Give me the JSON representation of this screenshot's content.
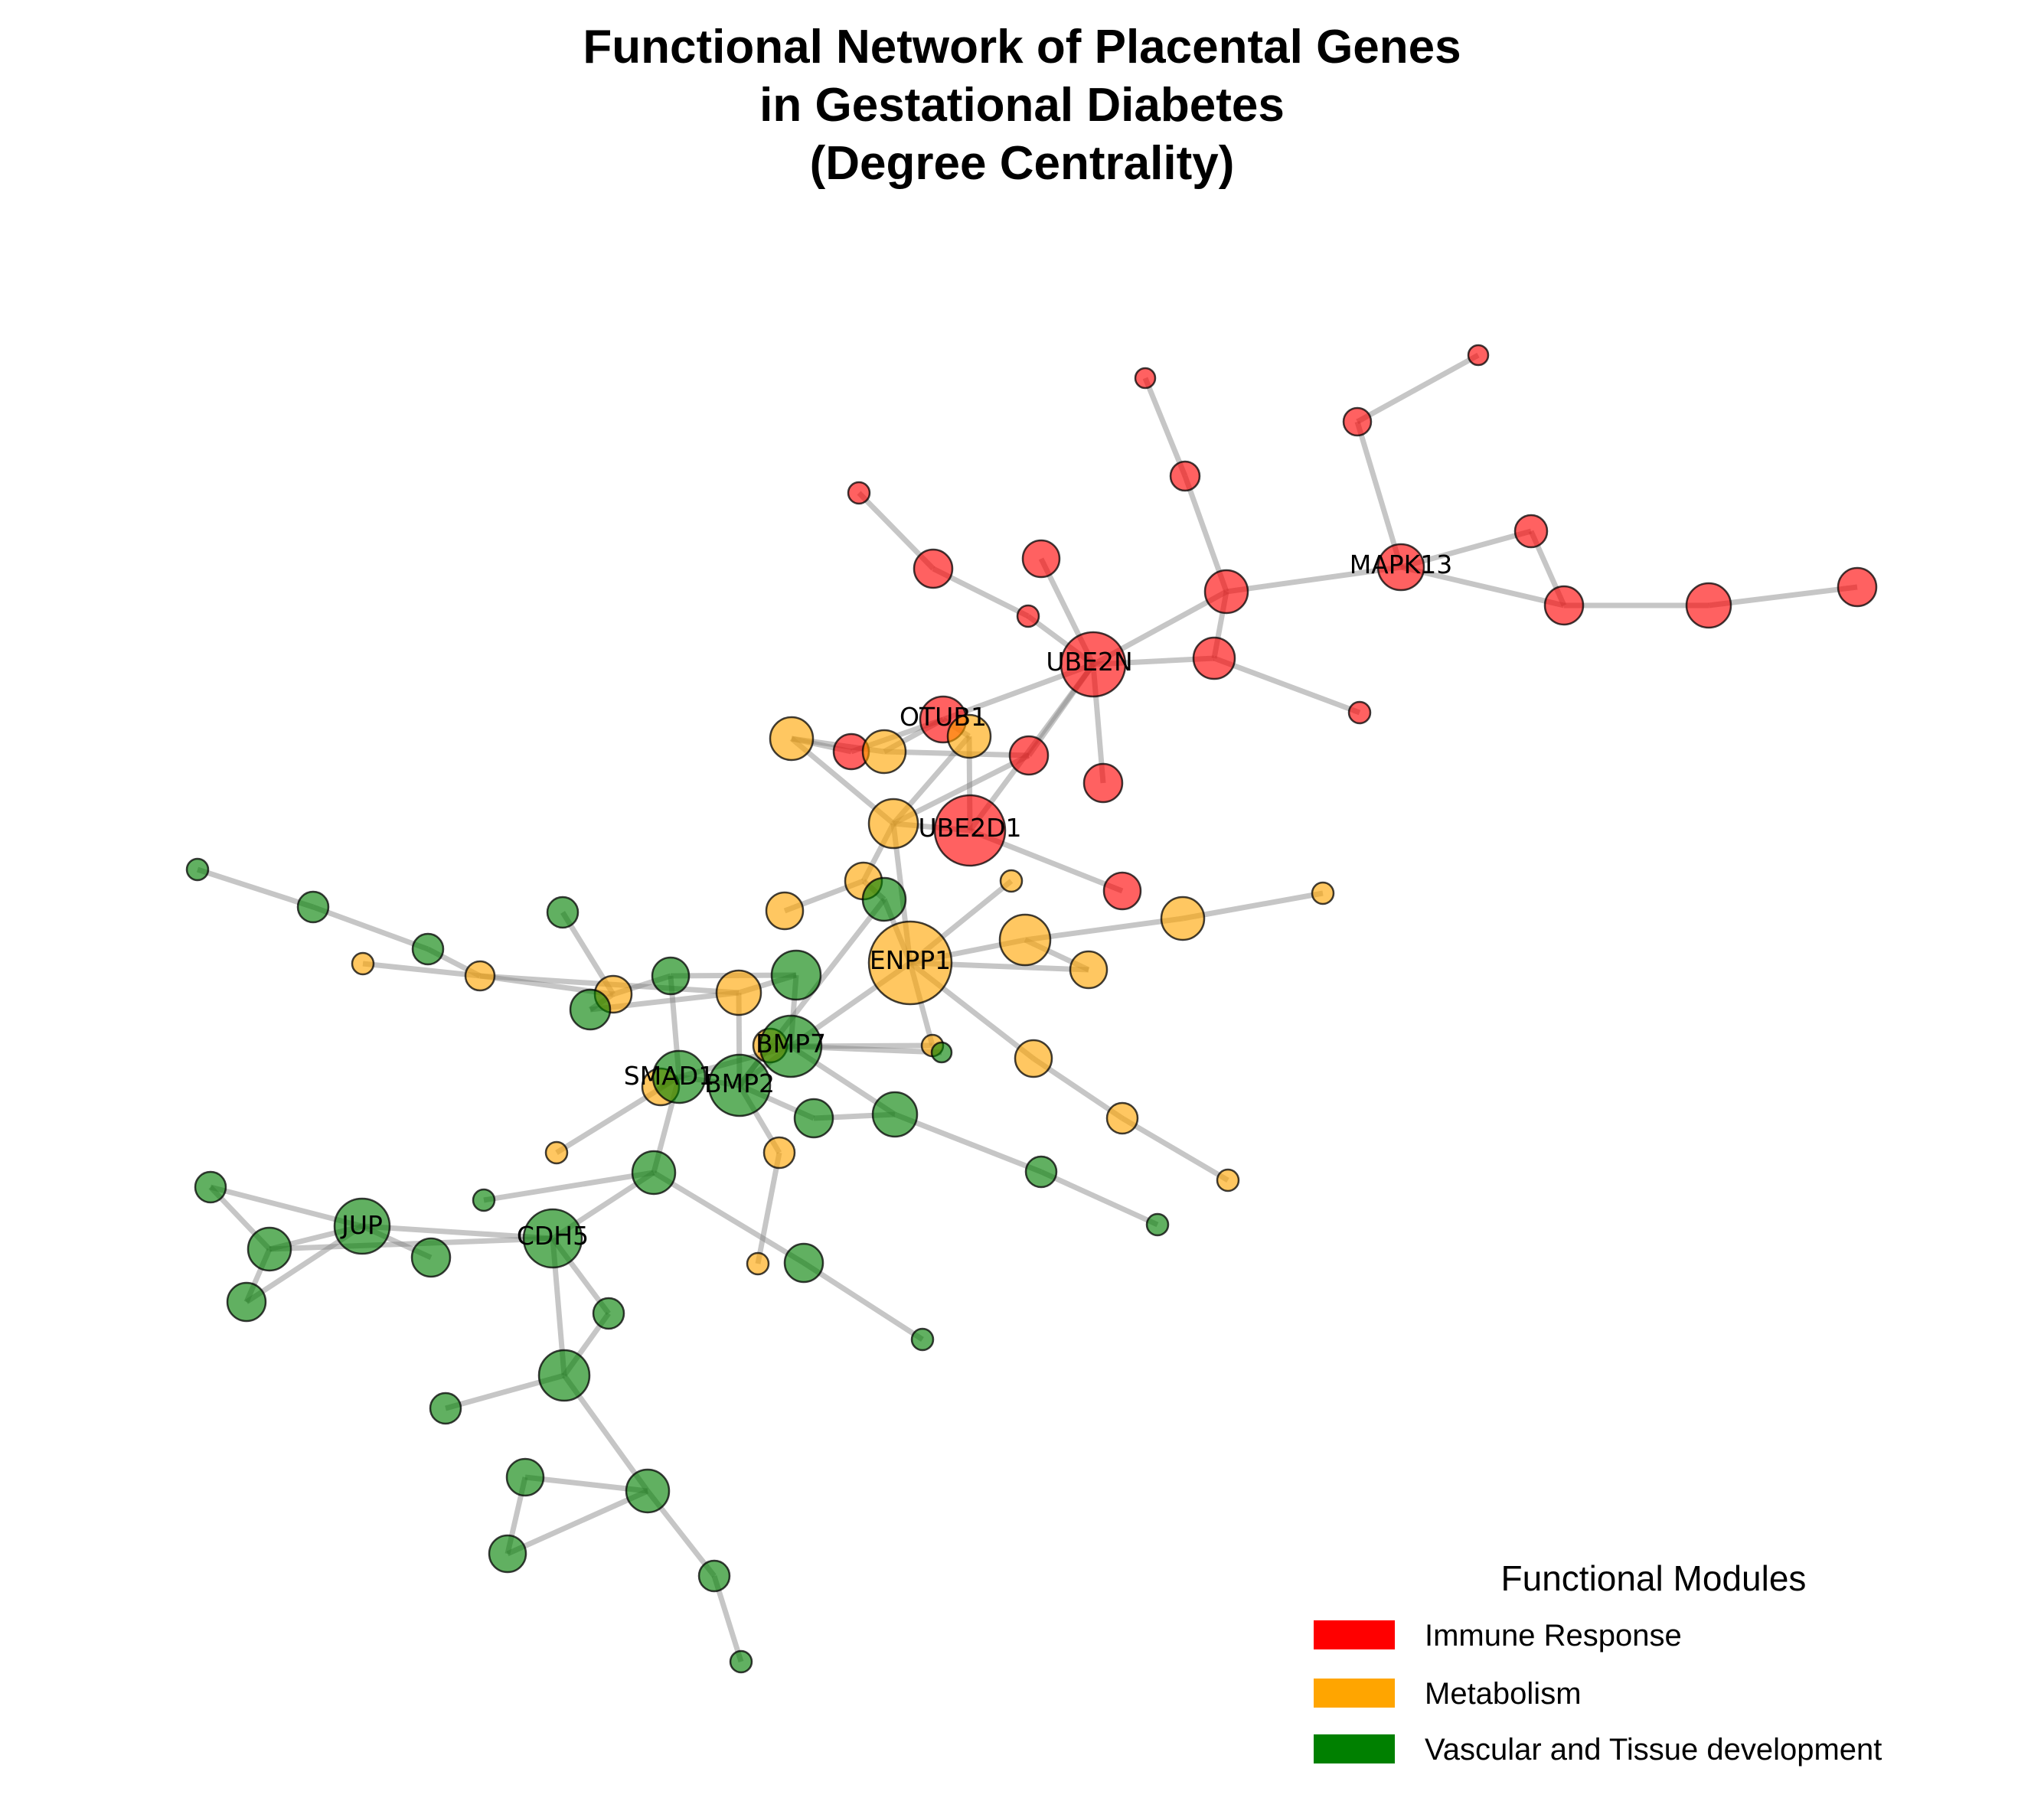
{
  "title": {
    "lines": [
      "Functional Network of Placental Genes",
      "in Gestational Diabetes",
      "(Degree Centrality)"
    ]
  },
  "legend": {
    "title": "Functional Modules",
    "items": [
      {
        "label": "Immune Response",
        "color": "#ff0000"
      },
      {
        "label": "Metabolism",
        "color": "#ffa500"
      },
      {
        "label": "Vascular and Tissue development",
        "color": "#008000"
      }
    ]
  },
  "labels": {
    "ube2n": "UBE2N",
    "mapk13": "MAPK13",
    "otub1": "OTUB1",
    "ube2d1": "UBE2D1",
    "enpp1": "ENPP1",
    "bmp7": "BMP7",
    "smad1": "SMAD1",
    "bmp2": "BMP2",
    "jup": "JUP",
    "cdh5": "CDH5"
  },
  "module_colors": {
    "immune": "#ff0000",
    "metabolism": "#ffa500",
    "vascular": "#008000"
  }
}
